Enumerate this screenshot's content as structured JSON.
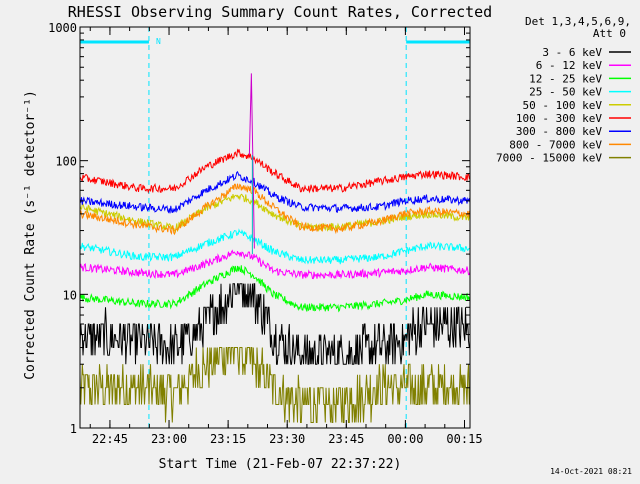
{
  "chart_data": {
    "type": "line",
    "title": "RHESSI Observing Summary Count Rates, Corrected",
    "xlabel": "Start Time (21-Feb-07 22:37:22)",
    "ylabel": "Corrected Count Rate (s⁻¹ detector⁻¹)",
    "yscale": "log",
    "ylim": [
      1,
      1000
    ],
    "y_ticks": [
      {
        "value": 1,
        "label": "1"
      },
      {
        "value": 10,
        "label": "10"
      },
      {
        "value": 100,
        "label": "100"
      },
      {
        "value": 1000,
        "label": "1000"
      }
    ],
    "x_unit": "minutes since 22:37:22",
    "xlim": [
      0,
      99
    ],
    "x_ticks": [
      {
        "value": 7.6,
        "label": "22:45"
      },
      {
        "value": 22.6,
        "label": "23:00"
      },
      {
        "value": 37.6,
        "label": "23:15"
      },
      {
        "value": 52.6,
        "label": "23:30"
      },
      {
        "value": 67.6,
        "label": "23:45"
      },
      {
        "value": 82.6,
        "label": "00:00"
      },
      {
        "value": 97.6,
        "label": "00:15"
      }
    ],
    "legend_header": [
      "Det 1,3,4,5,6,9,",
      "Att 0"
    ],
    "legend_position": "right",
    "night_bars": [
      {
        "x0": 0,
        "x1": 17.5
      },
      {
        "x0": 82.8,
        "x1": 99
      }
    ],
    "night_marker": "N",
    "night_dashes": [
      0,
      17.5,
      82.8,
      99
    ],
    "series": [
      {
        "name": "3 - 6 keV",
        "color": "#000000",
        "values": [
          [
            0,
            5
          ],
          [
            15,
            4.5
          ],
          [
            24,
            4
          ],
          [
            32,
            6
          ],
          [
            40,
            12
          ],
          [
            44,
            10
          ],
          [
            49,
            5
          ],
          [
            56,
            3.5
          ],
          [
            66,
            3.5
          ],
          [
            76,
            4
          ],
          [
            82,
            4.5
          ],
          [
            88,
            6
          ],
          [
            99,
            5.5
          ]
        ]
      },
      {
        "name": "6 - 12 keV",
        "color": "#ff00ff",
        "values": [
          [
            0,
            16
          ],
          [
            15,
            14.5
          ],
          [
            24,
            14
          ],
          [
            32,
            17
          ],
          [
            40,
            21
          ],
          [
            44,
            19
          ],
          [
            49,
            15
          ],
          [
            56,
            14
          ],
          [
            66,
            14
          ],
          [
            76,
            14.5
          ],
          [
            82,
            15
          ],
          [
            88,
            16
          ],
          [
            99,
            15
          ]
        ]
      },
      {
        "name": "12 - 25 keV",
        "color": "#00ff00",
        "values": [
          [
            0,
            9.5
          ],
          [
            15,
            8.5
          ],
          [
            24,
            8.5
          ],
          [
            32,
            12
          ],
          [
            40,
            16
          ],
          [
            44,
            14
          ],
          [
            49,
            10
          ],
          [
            56,
            8
          ],
          [
            66,
            8
          ],
          [
            76,
            8.5
          ],
          [
            82,
            9
          ],
          [
            88,
            10
          ],
          [
            99,
            9.5
          ]
        ]
      },
      {
        "name": "25 - 50 keV",
        "color": "#00ffff",
        "values": [
          [
            0,
            23
          ],
          [
            15,
            19
          ],
          [
            24,
            19
          ],
          [
            32,
            24
          ],
          [
            40,
            29
          ],
          [
            44,
            26
          ],
          [
            49,
            21
          ],
          [
            56,
            18
          ],
          [
            66,
            18
          ],
          [
            76,
            19
          ],
          [
            82,
            21
          ],
          [
            88,
            23
          ],
          [
            99,
            22
          ]
        ]
      },
      {
        "name": "50 - 100 keV",
        "color": "#cccc00",
        "values": [
          [
            0,
            45
          ],
          [
            15,
            35
          ],
          [
            24,
            31
          ],
          [
            32,
            44
          ],
          [
            40,
            55
          ],
          [
            44,
            50
          ],
          [
            49,
            40
          ],
          [
            56,
            32
          ],
          [
            66,
            32
          ],
          [
            76,
            35
          ],
          [
            82,
            38
          ],
          [
            88,
            40
          ],
          [
            99,
            37
          ]
        ]
      },
      {
        "name": "100 - 300 keV",
        "color": "#ff0000",
        "values": [
          [
            0,
            75
          ],
          [
            15,
            62
          ],
          [
            24,
            62
          ],
          [
            32,
            90
          ],
          [
            40,
            115
          ],
          [
            44,
            105
          ],
          [
            49,
            82
          ],
          [
            56,
            62
          ],
          [
            66,
            62
          ],
          [
            76,
            70
          ],
          [
            82,
            75
          ],
          [
            88,
            80
          ],
          [
            99,
            75
          ]
        ]
      },
      {
        "name": "300 - 800 keV",
        "color": "#0000ff",
        "values": [
          [
            0,
            50
          ],
          [
            15,
            45
          ],
          [
            24,
            43
          ],
          [
            32,
            60
          ],
          [
            40,
            78
          ],
          [
            44,
            70
          ],
          [
            49,
            55
          ],
          [
            56,
            45
          ],
          [
            66,
            44
          ],
          [
            76,
            45
          ],
          [
            82,
            50
          ],
          [
            88,
            52
          ],
          [
            99,
            50
          ]
        ]
      },
      {
        "name": "800 - 7000 keV",
        "color": "#ff8800",
        "values": [
          [
            0,
            40
          ],
          [
            15,
            33
          ],
          [
            24,
            30
          ],
          [
            32,
            45
          ],
          [
            40,
            65
          ],
          [
            44,
            60
          ],
          [
            49,
            45
          ],
          [
            56,
            32
          ],
          [
            66,
            31
          ],
          [
            76,
            35
          ],
          [
            82,
            40
          ],
          [
            88,
            42
          ],
          [
            99,
            40
          ]
        ]
      },
      {
        "name": "7000 - 15000 keV",
        "color": "#808000",
        "values": [
          [
            0,
            2
          ],
          [
            15,
            2
          ],
          [
            24,
            1.8
          ],
          [
            32,
            3
          ],
          [
            40,
            4
          ],
          [
            44,
            3
          ],
          [
            49,
            2
          ],
          [
            56,
            1.5
          ],
          [
            66,
            1.5
          ],
          [
            76,
            2
          ],
          [
            82,
            2
          ],
          [
            88,
            2
          ],
          [
            99,
            2
          ]
        ]
      }
    ],
    "spike": {
      "x": 43.5,
      "peak": 450,
      "base": 110,
      "color": "#cc00cc"
    }
  },
  "footer_date": "14-Oct-2021 08:21"
}
